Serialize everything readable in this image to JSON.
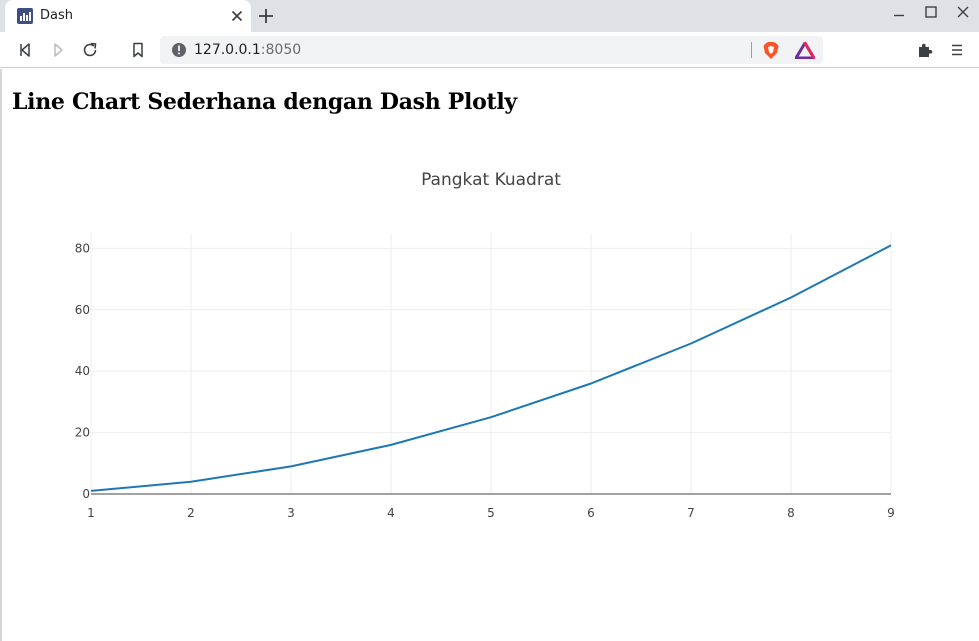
{
  "browser": {
    "tab_title": "Dash",
    "url_host": "127.0.0.1",
    "url_port": ":8050"
  },
  "page": {
    "heading": "Line Chart Sederhana dengan Dash Plotly"
  },
  "chart_data": {
    "type": "line",
    "title": "Pangkat Kuadrat",
    "xlabel": "",
    "ylabel": "",
    "x": [
      1,
      2,
      3,
      4,
      5,
      6,
      7,
      8,
      9
    ],
    "series": [
      {
        "values": [
          1,
          4,
          9,
          16,
          25,
          36,
          49,
          64,
          81
        ],
        "color": "#1f77b4"
      }
    ],
    "xlim": [
      1,
      9
    ],
    "ylim": [
      0,
      85
    ],
    "yticks": [
      0,
      20,
      40,
      60,
      80
    ],
    "xticks": [
      1,
      2,
      3,
      4,
      5,
      6,
      7,
      8,
      9
    ],
    "grid": true,
    "legend": "none"
  },
  "colors": {
    "line": "#1f77b4",
    "grid": "#eeeeee",
    "tabstrip": "#dee1e6"
  }
}
